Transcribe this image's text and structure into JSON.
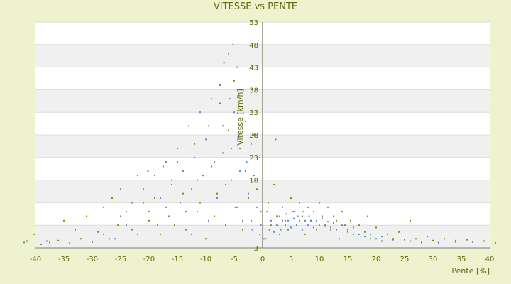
{
  "chart_data": {
    "type": "scatter",
    "title": "VITESSE vs PENTE",
    "xlabel": "Pente [%]",
    "ylabel": "Vitesse [km/h]",
    "xlim": [
      -40,
      40
    ],
    "ylim": [
      3,
      53
    ],
    "x_ticks": [
      -40,
      -35,
      -30,
      -25,
      -20,
      -15,
      -10,
      -5,
      0,
      5,
      10,
      15,
      20,
      25,
      30,
      35,
      40
    ],
    "y_ticks": [
      3,
      8,
      13,
      18,
      23,
      28,
      33,
      38,
      43,
      48,
      53
    ],
    "y_tick_labels": [
      "3",
      "",
      "",
      "18",
      "23",
      "28",
      "33",
      "38",
      "43",
      "48",
      "53"
    ],
    "grid": true,
    "colors": {
      "plot_bg": "#ffffff",
      "band": "#f0f0f0",
      "axis_text": "#5c6a08"
    },
    "series": [
      {
        "color": "#8a8a10",
        "points": [
          [
            -41.5,
            4.5
          ],
          [
            -40.2,
            6
          ],
          [
            -39,
            3.8
          ],
          [
            -37.5,
            4.2
          ],
          [
            -36,
            4.6
          ],
          [
            -35,
            9
          ],
          [
            -34,
            4
          ],
          [
            -33,
            7
          ],
          [
            -32,
            5
          ],
          [
            -31,
            10
          ],
          [
            -30,
            4.3
          ],
          [
            -29,
            6.5
          ],
          [
            -28,
            12
          ],
          [
            -27,
            5
          ],
          [
            -26.5,
            14
          ],
          [
            -25.5,
            8
          ],
          [
            -25,
            16
          ],
          [
            -24,
            11
          ],
          [
            -23,
            7
          ],
          [
            -22,
            19
          ],
          [
            -21,
            13
          ],
          [
            -20.2,
            20
          ],
          [
            -20,
            9
          ],
          [
            -19,
            14
          ],
          [
            -18,
            6
          ],
          [
            -17.5,
            21
          ],
          [
            -17,
            12
          ],
          [
            -16,
            17
          ],
          [
            -15.5,
            8
          ],
          [
            -15,
            22
          ],
          [
            -14,
            15
          ],
          [
            -13.5,
            11
          ],
          [
            -12.5,
            6
          ],
          [
            -12,
            26
          ],
          [
            -11.5,
            18
          ],
          [
            -11,
            13
          ],
          [
            -10,
            5
          ],
          [
            -9.5,
            30
          ],
          [
            -9,
            21
          ],
          [
            -8.5,
            10
          ],
          [
            -8,
            15
          ],
          [
            -7.5,
            35
          ],
          [
            -7,
            24
          ],
          [
            -6.5,
            8
          ],
          [
            -6,
            29
          ],
          [
            -5.5,
            18
          ],
          [
            -5,
            40
          ],
          [
            -4.5,
            12
          ],
          [
            -4,
            25
          ],
          [
            -3.5,
            7
          ],
          [
            -3,
            20
          ],
          [
            -2.5,
            14
          ],
          [
            -2,
            9
          ],
          [
            -1.5,
            28
          ],
          [
            -1,
            16
          ],
          [
            -0.5,
            6
          ],
          [
            -0.3,
            11
          ],
          [
            0.5,
            5
          ],
          [
            1,
            13
          ],
          [
            1.5,
            8
          ],
          [
            2,
            17
          ],
          [
            2.5,
            10
          ],
          [
            3,
            6
          ],
          [
            2.3,
            27
          ],
          [
            3.5,
            12
          ],
          [
            4,
            9
          ],
          [
            4.5,
            7
          ],
          [
            5,
            14
          ],
          [
            5.5,
            11
          ],
          [
            6,
            8
          ],
          [
            6.5,
            13
          ],
          [
            7,
            10
          ],
          [
            7.5,
            6
          ],
          [
            8,
            12
          ],
          [
            8.5,
            9
          ],
          [
            9,
            11
          ],
          [
            9.5,
            7
          ],
          [
            10,
            13
          ],
          [
            10.5,
            10
          ],
          [
            11,
            8
          ],
          [
            11.5,
            12
          ],
          [
            12,
            7
          ],
          [
            12.5,
            10
          ],
          [
            13,
            9
          ],
          [
            13.5,
            5
          ],
          [
            14,
            11
          ],
          [
            14.5,
            8
          ],
          [
            15,
            7
          ],
          [
            15.5,
            9
          ],
          [
            16,
            6
          ],
          [
            17,
            8
          ],
          [
            18,
            6.5
          ],
          [
            18.5,
            10
          ],
          [
            19,
            5
          ],
          [
            20,
            7.5
          ],
          [
            21,
            4.5
          ],
          [
            22,
            6
          ],
          [
            23,
            5
          ],
          [
            24,
            6.5
          ],
          [
            25,
            4.8
          ],
          [
            26,
            9
          ],
          [
            27,
            5
          ],
          [
            28,
            4.2
          ],
          [
            29,
            5.5
          ],
          [
            30,
            4.6
          ],
          [
            31,
            4
          ],
          [
            32,
            5
          ],
          [
            34,
            4.3
          ],
          [
            36,
            4.8
          ],
          [
            39,
            4.5
          ]
        ]
      },
      {
        "color": "#4e8fd6",
        "points": [
          [
            -42,
            4.2
          ],
          [
            -38,
            4.5
          ],
          [
            -34,
            4
          ],
          [
            -30,
            4.3
          ],
          [
            -28,
            6
          ],
          [
            -26,
            5
          ],
          [
            -25,
            10
          ],
          [
            -24,
            8
          ],
          [
            -23,
            13
          ],
          [
            -22,
            6
          ],
          [
            -21,
            16
          ],
          [
            -20,
            11
          ],
          [
            -19,
            19
          ],
          [
            -18.5,
            8
          ],
          [
            -18,
            14
          ],
          [
            -17,
            22
          ],
          [
            -16.5,
            10
          ],
          [
            -16,
            18
          ],
          [
            -15,
            25
          ],
          [
            -14.5,
            13
          ],
          [
            -14,
            20
          ],
          [
            -13.5,
            7
          ],
          [
            -13,
            30
          ],
          [
            -12.5,
            16
          ],
          [
            -12,
            23
          ],
          [
            -11.5,
            11
          ],
          [
            -11,
            33
          ],
          [
            -10.5,
            19
          ],
          [
            -10,
            27
          ],
          [
            -9.5,
            9
          ],
          [
            -9,
            36
          ],
          [
            -8.5,
            22
          ],
          [
            -8,
            14
          ],
          [
            -7.5,
            39
          ],
          [
            -7,
            30
          ],
          [
            -6.8,
            44
          ],
          [
            -6.5,
            17
          ],
          [
            -6,
            46
          ],
          [
            -5.8,
            36
          ],
          [
            -5.5,
            25
          ],
          [
            -5.2,
            48
          ],
          [
            -5,
            33
          ],
          [
            -4.8,
            12
          ],
          [
            -4.5,
            43
          ],
          [
            -4.2,
            28
          ],
          [
            -4,
            20
          ],
          [
            -3.8,
            38
          ],
          [
            -3.5,
            9
          ],
          [
            -3,
            31
          ],
          [
            -2.8,
            22
          ],
          [
            -2.5,
            15
          ],
          [
            -2,
            26
          ],
          [
            -1.8,
            7
          ],
          [
            -1.5,
            19
          ],
          [
            -1,
            12
          ],
          [
            -0.5,
            23
          ],
          [
            -0.3,
            8
          ],
          [
            0.2,
            5
          ],
          [
            0.8,
            11
          ],
          [
            1.2,
            7
          ],
          [
            1.5,
            9
          ],
          [
            2,
            6.5
          ],
          [
            2.5,
            8
          ],
          [
            3,
            10
          ],
          [
            3.2,
            7
          ],
          [
            3.5,
            9
          ],
          [
            4,
            8
          ],
          [
            4.2,
            10.5
          ],
          [
            4.5,
            9
          ],
          [
            5,
            7.5
          ],
          [
            5.2,
            11
          ],
          [
            5.5,
            9.5
          ],
          [
            6,
            8
          ],
          [
            6.2,
            10
          ],
          [
            6.5,
            9
          ],
          [
            7,
            7
          ],
          [
            7.2,
            11
          ],
          [
            7.5,
            9
          ],
          [
            8,
            8
          ],
          [
            8.2,
            10
          ],
          [
            8.5,
            9
          ],
          [
            9,
            7.5
          ],
          [
            9.5,
            9
          ],
          [
            10,
            8
          ],
          [
            10.5,
            9.5
          ],
          [
            11,
            7.8
          ],
          [
            11.5,
            8.8
          ],
          [
            12,
            7.5
          ],
          [
            12.5,
            8.5
          ],
          [
            13,
            7
          ],
          [
            14,
            8
          ],
          [
            15,
            6.5
          ],
          [
            16,
            7.5
          ],
          [
            17,
            6
          ],
          [
            18,
            5.5
          ],
          [
            19,
            6
          ],
          [
            20,
            5
          ],
          [
            21,
            5.5
          ],
          [
            23,
            4.8
          ],
          [
            26,
            4.5
          ],
          [
            28,
            4.3
          ],
          [
            31,
            4.2
          ],
          [
            34,
            4.6
          ],
          [
            37,
            4.3
          ],
          [
            41,
            4.1
          ]
        ]
      }
    ]
  }
}
